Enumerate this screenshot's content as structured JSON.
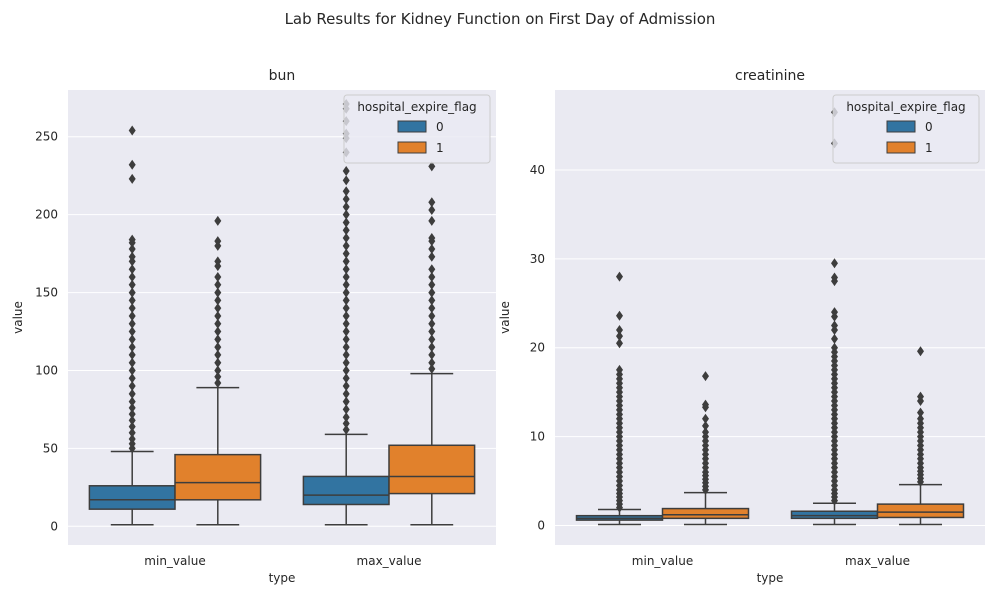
{
  "title": "Lab Results for Kidney Function on First Day of Admission",
  "colors": {
    "series_0": "#3274a1",
    "series_1": "#e1812c",
    "axes_bg": "#eaeaf2",
    "grid": "#ffffff",
    "line": "#3d3d3d"
  },
  "chart_data": [
    {
      "type": "box",
      "title": "bun",
      "xlabel": "type",
      "ylabel": "value",
      "categories": [
        "min_value",
        "max_value"
      ],
      "ylim": [
        -12,
        280
      ],
      "yticks": [
        0,
        50,
        100,
        150,
        200,
        250
      ],
      "grid": true,
      "legend": {
        "title": "hospital_expire_flag",
        "placement": "top-right",
        "entries": [
          "0",
          "1"
        ]
      },
      "series": [
        {
          "name": "0",
          "boxes": [
            {
              "category": "min_value",
              "whisker_low": 1,
              "q1": 11,
              "median": 17,
              "q3": 26,
              "whisker_high": 48,
              "outliers": [
                50,
                53,
                56,
                60,
                64,
                68,
                72,
                76,
                80,
                85,
                90,
                95,
                100,
                105,
                110,
                115,
                120,
                125,
                130,
                135,
                140,
                145,
                150,
                155,
                160,
                165,
                170,
                173,
                178,
                182,
                184,
                223,
                232,
                254
              ]
            },
            {
              "category": "max_value",
              "whisker_low": 1,
              "q1": 14,
              "median": 20,
              "q3": 32,
              "whisker_high": 59,
              "outliers": [
                62,
                66,
                70,
                75,
                80,
                85,
                90,
                95,
                100,
                105,
                110,
                115,
                120,
                125,
                130,
                135,
                140,
                145,
                150,
                155,
                160,
                165,
                170,
                175,
                180,
                185,
                190,
                195,
                200,
                205,
                210,
                215,
                222,
                228,
                240,
                249,
                252,
                260,
                268,
                271
              ]
            }
          ]
        },
        {
          "name": "1",
          "boxes": [
            {
              "category": "min_value",
              "whisker_low": 1,
              "q1": 17,
              "median": 28,
              "q3": 46,
              "whisker_high": 89,
              "outliers": [
                92,
                96,
                100,
                105,
                110,
                115,
                120,
                125,
                130,
                135,
                140,
                145,
                150,
                155,
                160,
                167,
                170,
                180,
                183,
                196
              ]
            },
            {
              "category": "max_value",
              "whisker_low": 1,
              "q1": 21,
              "median": 32,
              "q3": 52,
              "whisker_high": 98,
              "outliers": [
                101,
                105,
                110,
                115,
                120,
                125,
                130,
                135,
                140,
                145,
                150,
                155,
                160,
                165,
                173,
                178,
                183,
                185,
                196,
                203,
                208,
                231
              ]
            }
          ]
        }
      ]
    },
    {
      "type": "box",
      "title": "creatinine",
      "xlabel": "type",
      "ylabel": "value",
      "categories": [
        "min_value",
        "max_value"
      ],
      "ylim": [
        -2.2,
        49
      ],
      "yticks": [
        0,
        10,
        20,
        30,
        40
      ],
      "grid": true,
      "legend": {
        "title": "hospital_expire_flag",
        "placement": "top-right",
        "entries": [
          "0",
          "1"
        ]
      },
      "series": [
        {
          "name": "0",
          "boxes": [
            {
              "category": "min_value",
              "whisker_low": 0.1,
              "q1": 0.6,
              "median": 0.8,
              "q3": 1.1,
              "whisker_high": 1.8,
              "outliers": [
                2,
                2.4,
                2.8,
                3.2,
                3.6,
                4,
                4.5,
                5,
                5.5,
                6,
                6.5,
                7,
                7.5,
                8,
                8.5,
                9,
                9.5,
                10,
                10.5,
                11,
                11.5,
                12,
                12.5,
                13,
                13.5,
                14,
                14.5,
                15,
                15.5,
                16,
                16.5,
                17,
                17.5,
                20.5,
                21.3,
                22,
                23.6,
                28
              ]
            },
            {
              "category": "max_value",
              "whisker_low": 0.1,
              "q1": 0.8,
              "median": 1.1,
              "q3": 1.6,
              "whisker_high": 2.5,
              "outliers": [
                2.8,
                3.2,
                3.6,
                4,
                4.5,
                5,
                5.5,
                6,
                6.5,
                7,
                7.5,
                8,
                8.5,
                9,
                9.5,
                10,
                10.5,
                11,
                11.5,
                12,
                12.5,
                13,
                13.5,
                14,
                14.5,
                15,
                15.5,
                16,
                16.5,
                17,
                17.5,
                18,
                18.5,
                19,
                19.5,
                20,
                21,
                22,
                22.5,
                23.5,
                24,
                27.5,
                27.9,
                29.5,
                43,
                46.5
              ]
            }
          ]
        },
        {
          "name": "1",
          "boxes": [
            {
              "category": "min_value",
              "whisker_low": 0.1,
              "q1": 0.8,
              "median": 1.2,
              "q3": 1.9,
              "whisker_high": 3.7,
              "outliers": [
                4,
                4.4,
                4.8,
                5.2,
                5.6,
                6,
                6.5,
                7,
                7.5,
                8,
                8.5,
                9,
                9.5,
                10,
                10.5,
                11.2,
                12,
                13.3,
                13.6,
                16.8
              ]
            },
            {
              "category": "max_value",
              "whisker_low": 0.1,
              "q1": 0.9,
              "median": 1.5,
              "q3": 2.4,
              "whisker_high": 4.6,
              "outliers": [
                4.9,
                5.3,
                5.7,
                6.1,
                6.5,
                7,
                7.5,
                8,
                8.5,
                9,
                9.5,
                10,
                10.5,
                11,
                11.5,
                12,
                12.7,
                14,
                14.5,
                19.6
              ]
            }
          ]
        }
      ]
    }
  ]
}
